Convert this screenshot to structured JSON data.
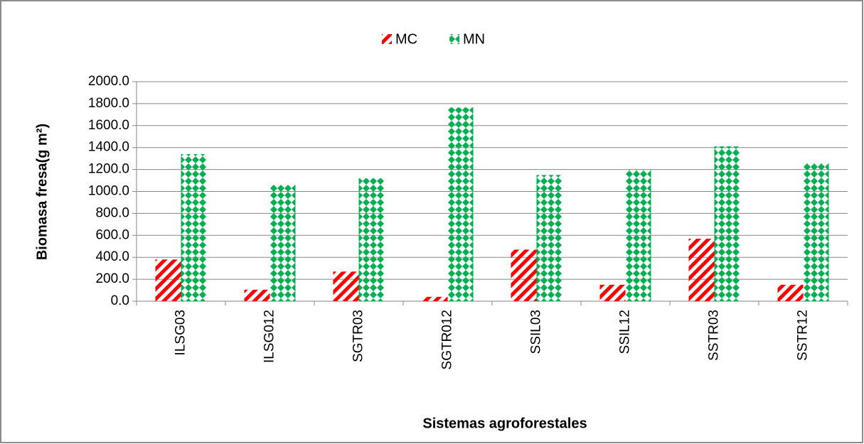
{
  "chart_data": {
    "type": "bar",
    "x_label": "Sistemas agroforestales",
    "y_label": "Biomasa fresa(g m²)",
    "categories": [
      "ILSG03",
      "ILSG012",
      "SGTR03",
      "SGTR012",
      "SSIL03",
      "SSIL12",
      "SSTR03",
      "SSTR12"
    ],
    "series": [
      {
        "name": "MC",
        "color": "#ff0000",
        "values": [
          380,
          105,
          270,
          40,
          470,
          150,
          570,
          150
        ]
      },
      {
        "name": "MN",
        "color": "#00b050",
        "values": [
          1340,
          1060,
          1120,
          1765,
          1150,
          1200,
          1410,
          1260
        ]
      }
    ],
    "ylim": [
      0,
      2000
    ],
    "yticks": [
      {
        "value": 0,
        "label": "0.0"
      },
      {
        "value": 200,
        "label": "200.0"
      },
      {
        "value": 400,
        "label": "400.0"
      },
      {
        "value": 600,
        "label": "600.0"
      },
      {
        "value": 800,
        "label": "800.0"
      },
      {
        "value": 1000,
        "label": "1000.0"
      },
      {
        "value": 1200,
        "label": "1200.0"
      },
      {
        "value": 1400,
        "label": "1400.0"
      },
      {
        "value": 1600,
        "label": "1600.0"
      },
      {
        "value": 1800,
        "label": "1800.0"
      },
      {
        "value": 2000,
        "label": "2000.0"
      }
    ],
    "grid": true,
    "legend": "top"
  }
}
